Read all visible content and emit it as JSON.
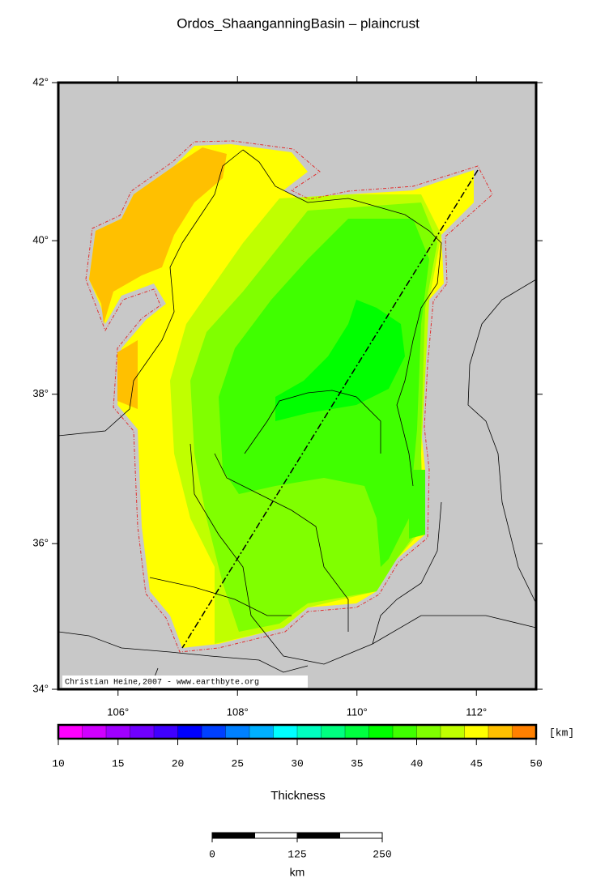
{
  "title": "Ordos_ShaanganningBasin – plaincrust",
  "map": {
    "lon_range": [
      105,
      113
    ],
    "lat_range": [
      34,
      42
    ],
    "lon_ticks": [
      {
        "value": 106,
        "label": "106°"
      },
      {
        "value": 108,
        "label": "108°"
      },
      {
        "value": 110,
        "label": "110°"
      },
      {
        "value": 112,
        "label": "112°"
      }
    ],
    "lat_ticks": [
      {
        "value": 34,
        "label": "34°"
      },
      {
        "value": 36,
        "label": "36°"
      },
      {
        "value": 38,
        "label": "38°"
      },
      {
        "value": 40,
        "label": "40°"
      },
      {
        "value": 42,
        "label": "42°"
      }
    ],
    "credit": "Christian Heine,2007 - www.earthbyte.org"
  },
  "colorbar": {
    "title": "Thickness",
    "unit": "[km]",
    "range": [
      10,
      50
    ],
    "ticks": [
      10,
      15,
      20,
      25,
      30,
      35,
      40,
      45,
      50
    ],
    "colors": [
      "#ff00ff",
      "#d000ff",
      "#a000ff",
      "#7000ff",
      "#4000ff",
      "#0000ff",
      "#0040ff",
      "#0080ff",
      "#00b0ff",
      "#00ffff",
      "#00ffc0",
      "#00ff80",
      "#00ff40",
      "#00ff00",
      "#40ff00",
      "#80ff00",
      "#c0ff00",
      "#ffff00",
      "#ffc000",
      "#ff8000"
    ]
  },
  "scale_bar": {
    "ticks": [
      0,
      125,
      250
    ],
    "unit": "km"
  }
}
